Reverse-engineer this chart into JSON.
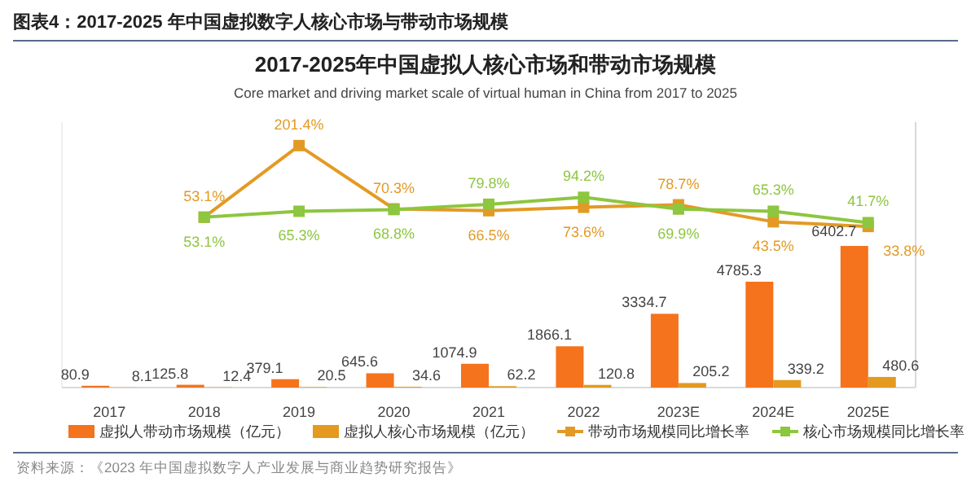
{
  "chart_data": {
    "type": "bar",
    "title": "2017-2025年中国虚拟人核心市场和带动市场规模",
    "subtitle": "Core market and driving market scale of virtual human in China from 2017 to 2025",
    "annotations": [
      "图表4：2017-2025 年中国虚拟数字人核心市场与带动市场规模",
      "资料来源：《2023 年中国虚拟数字人产业发展与商业趋势研究报告》"
    ],
    "categories": [
      "2017",
      "2018",
      "2019",
      "2020",
      "2021",
      "2022",
      "2023E",
      "2024E",
      "2025E"
    ],
    "series": [
      {
        "name": "虚拟人带动市场规模（亿元）",
        "color": "#f5731c",
        "values": [
          80.9,
          125.8,
          379.1,
          645.6,
          1074.9,
          1866.1,
          3334.7,
          4785.3,
          6402.7
        ]
      },
      {
        "name": "虚拟人核心市场规模（亿元）",
        "color": "#e39a1f",
        "values": [
          8.1,
          12.4,
          20.5,
          34.6,
          62.2,
          120.8,
          205.2,
          339.2,
          480.6
        ]
      },
      {
        "name": "带动市场规模同比增长率",
        "type": "line",
        "axis": "y2",
        "color": "#e39a24",
        "values": [
          null,
          53.1,
          201.4,
          70.3,
          66.5,
          73.6,
          78.7,
          43.5,
          33.8
        ],
        "value_labels": [
          null,
          "53.1%",
          "201.4%",
          "70.3%",
          "66.5%",
          "73.6%",
          "78.7%",
          "43.5%",
          "33.8%"
        ]
      },
      {
        "name": "核心市场规模同比增长率",
        "type": "line",
        "axis": "y2",
        "color": "#8dc63f",
        "values": [
          null,
          53.1,
          65.3,
          68.8,
          79.8,
          94.2,
          69.9,
          65.3,
          41.7
        ],
        "value_labels": [
          null,
          "53.1%",
          "65.3%",
          "68.8%",
          "79.8%",
          "94.2%",
          "69.9%",
          "65.3%",
          "41.7%"
        ]
      }
    ],
    "ylim": [
      0,
      12000
    ],
    "y2lim": [
      -300,
      250
    ],
    "tick_labels": "x",
    "data_labels": true,
    "marker": "square",
    "legend": "bottom"
  }
}
